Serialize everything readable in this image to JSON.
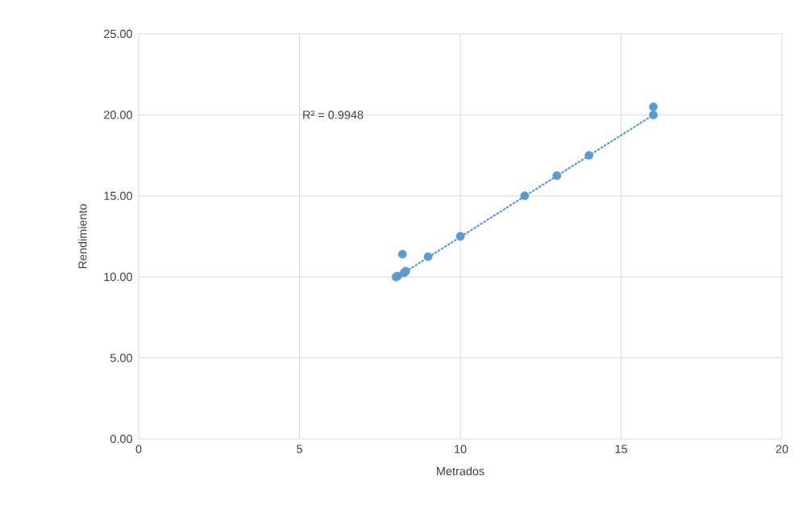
{
  "chart_data": {
    "type": "scatter",
    "xlabel": "Metrados",
    "ylabel": "Rendimiento",
    "xlim": [
      0,
      20
    ],
    "xticks": [
      0,
      5,
      10,
      15,
      20
    ],
    "ylim": [
      0,
      25
    ],
    "yticks": [
      {
        "value": 0,
        "label": "0.00"
      },
      {
        "value": 5,
        "label": "5.00"
      },
      {
        "value": 10,
        "label": "10.00"
      },
      {
        "value": 15,
        "label": "15.00"
      },
      {
        "value": 20,
        "label": "20.00"
      },
      {
        "value": 25,
        "label": "25.00"
      }
    ],
    "grid": true,
    "annotations": [
      "R² = 0.9948"
    ],
    "series": [
      {
        "marker": "circle",
        "color": "#5b9bd5",
        "x": [
          8,
          8.05,
          8.2,
          8.25,
          8.3,
          9,
          10,
          12,
          13,
          14,
          16,
          16
        ],
        "values": [
          10,
          10.05,
          11.4,
          10.25,
          10.35,
          11.25,
          12.5,
          15,
          16.25,
          17.5,
          20,
          20.5
        ]
      },
      {
        "type": "line",
        "line_style": "dotted",
        "marker": "none",
        "color": "#5b9bd5",
        "x": [
          8,
          16
        ],
        "values": [
          9.95,
          20
        ]
      }
    ]
  }
}
